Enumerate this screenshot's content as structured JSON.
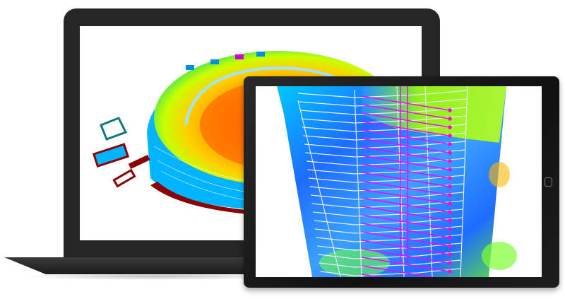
{
  "laptop": {
    "screen_content": "stadium-heatmap-3d",
    "colors": {
      "bezel": "#262626",
      "hot": "#ff5a00",
      "warm": "#ffd400",
      "mid": "#aaff00",
      "cool": "#00b4ff",
      "structure": "#8b0000"
    }
  },
  "tablet": {
    "screen_content": "tower-heatmap-3d",
    "colors": {
      "bezel": "#151515",
      "blue": "#1e6cff",
      "cyan": "#00c8ff",
      "green": "#8cff28",
      "wireframe": "#e6ecff",
      "pipes": "#ff00ff"
    },
    "home_button_icon": "home-button-icon"
  }
}
